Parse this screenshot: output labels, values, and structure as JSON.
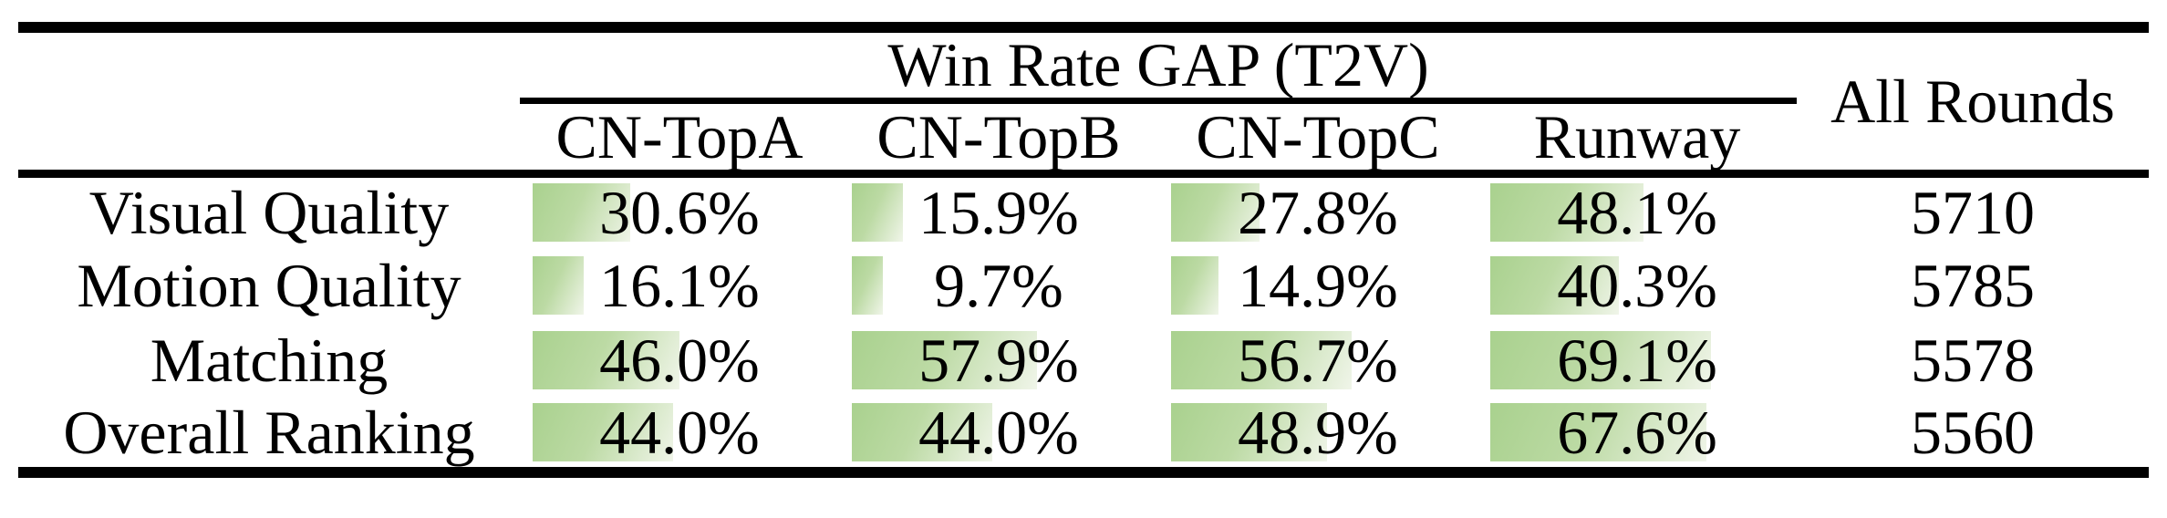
{
  "table": {
    "group_header": "Win Rate GAP (T2V)",
    "all_rounds_header": "All Rounds",
    "columns": [
      "CN-TopA",
      "CN-TopB",
      "CN-TopC",
      "Runway"
    ],
    "rows": [
      {
        "label": "Visual Quality",
        "cells": [
          {
            "text": "30.6%",
            "value": 30.6
          },
          {
            "text": "15.9%",
            "value": 15.9
          },
          {
            "text": "27.8%",
            "value": 27.8
          },
          {
            "text": "48.1%",
            "value": 48.1
          }
        ],
        "all_rounds": "5710"
      },
      {
        "label": "Motion Quality",
        "cells": [
          {
            "text": "16.1%",
            "value": 16.1
          },
          {
            "text": "9.7%",
            "value": 9.7
          },
          {
            "text": "14.9%",
            "value": 14.9
          },
          {
            "text": "40.3%",
            "value": 40.3
          }
        ],
        "all_rounds": "5785"
      },
      {
        "label": "Matching",
        "cells": [
          {
            "text": "46.0%",
            "value": 46.0
          },
          {
            "text": "57.9%",
            "value": 57.9
          },
          {
            "text": "56.7%",
            "value": 56.7
          },
          {
            "text": "69.1%",
            "value": 69.1
          }
        ],
        "all_rounds": "5578"
      },
      {
        "label": "Overall Ranking",
        "cells": [
          {
            "text": "44.0%",
            "value": 44.0
          },
          {
            "text": "44.0%",
            "value": 44.0
          },
          {
            "text": "48.9%",
            "value": 48.9
          },
          {
            "text": "67.6%",
            "value": 67.6
          }
        ],
        "all_rounds": "5560"
      }
    ],
    "colors": {
      "bar_gradient_start": "#a9d18e",
      "bar_gradient_mid": "#bcdaa4",
      "bar_gradient_end": "#f0f5e9",
      "rule": "#000000",
      "text": "#000000",
      "background": "#ffffff"
    }
  },
  "chart_data": {
    "type": "table",
    "title": "Win Rate GAP (T2V)",
    "row_labels": [
      "Visual Quality",
      "Motion Quality",
      "Matching",
      "Overall Ranking"
    ],
    "columns": [
      "CN-TopA",
      "CN-TopB",
      "CN-TopC",
      "Runway",
      "All Rounds"
    ],
    "win_rate_gap_percent": {
      "CN-TopA": [
        30.6,
        16.1,
        46.0,
        44.0
      ],
      "CN-TopB": [
        15.9,
        9.7,
        57.9,
        44.0
      ],
      "CN-TopC": [
        27.8,
        14.9,
        56.7,
        48.9
      ],
      "Runway": [
        48.1,
        40.3,
        69.1,
        67.6
      ]
    },
    "all_rounds": [
      5710,
      5785,
      5578,
      5560
    ],
    "bar_scale": [
      0,
      100
    ]
  }
}
